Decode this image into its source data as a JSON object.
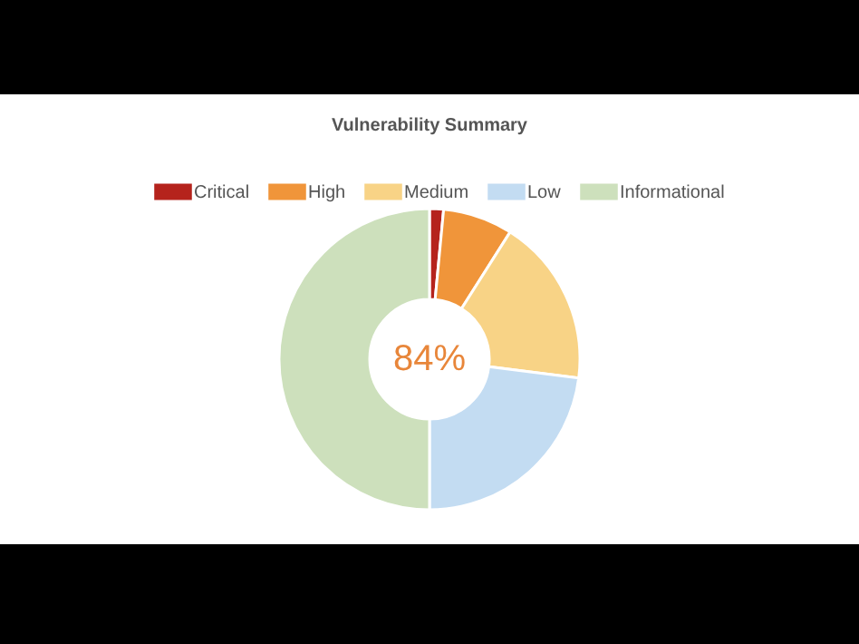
{
  "chart_data": {
    "type": "donut",
    "title": "Vulnerability Summary",
    "categories": [
      "Critical",
      "High",
      "Medium",
      "Low",
      "Informational"
    ],
    "values": [
      1.5,
      7.5,
      18,
      23,
      50
    ],
    "colors": [
      "#b5231c",
      "#f0953a",
      "#f8d386",
      "#c3dcf2",
      "#cde0bc"
    ],
    "legend": "top",
    "annotations": [
      "84%"
    ]
  }
}
